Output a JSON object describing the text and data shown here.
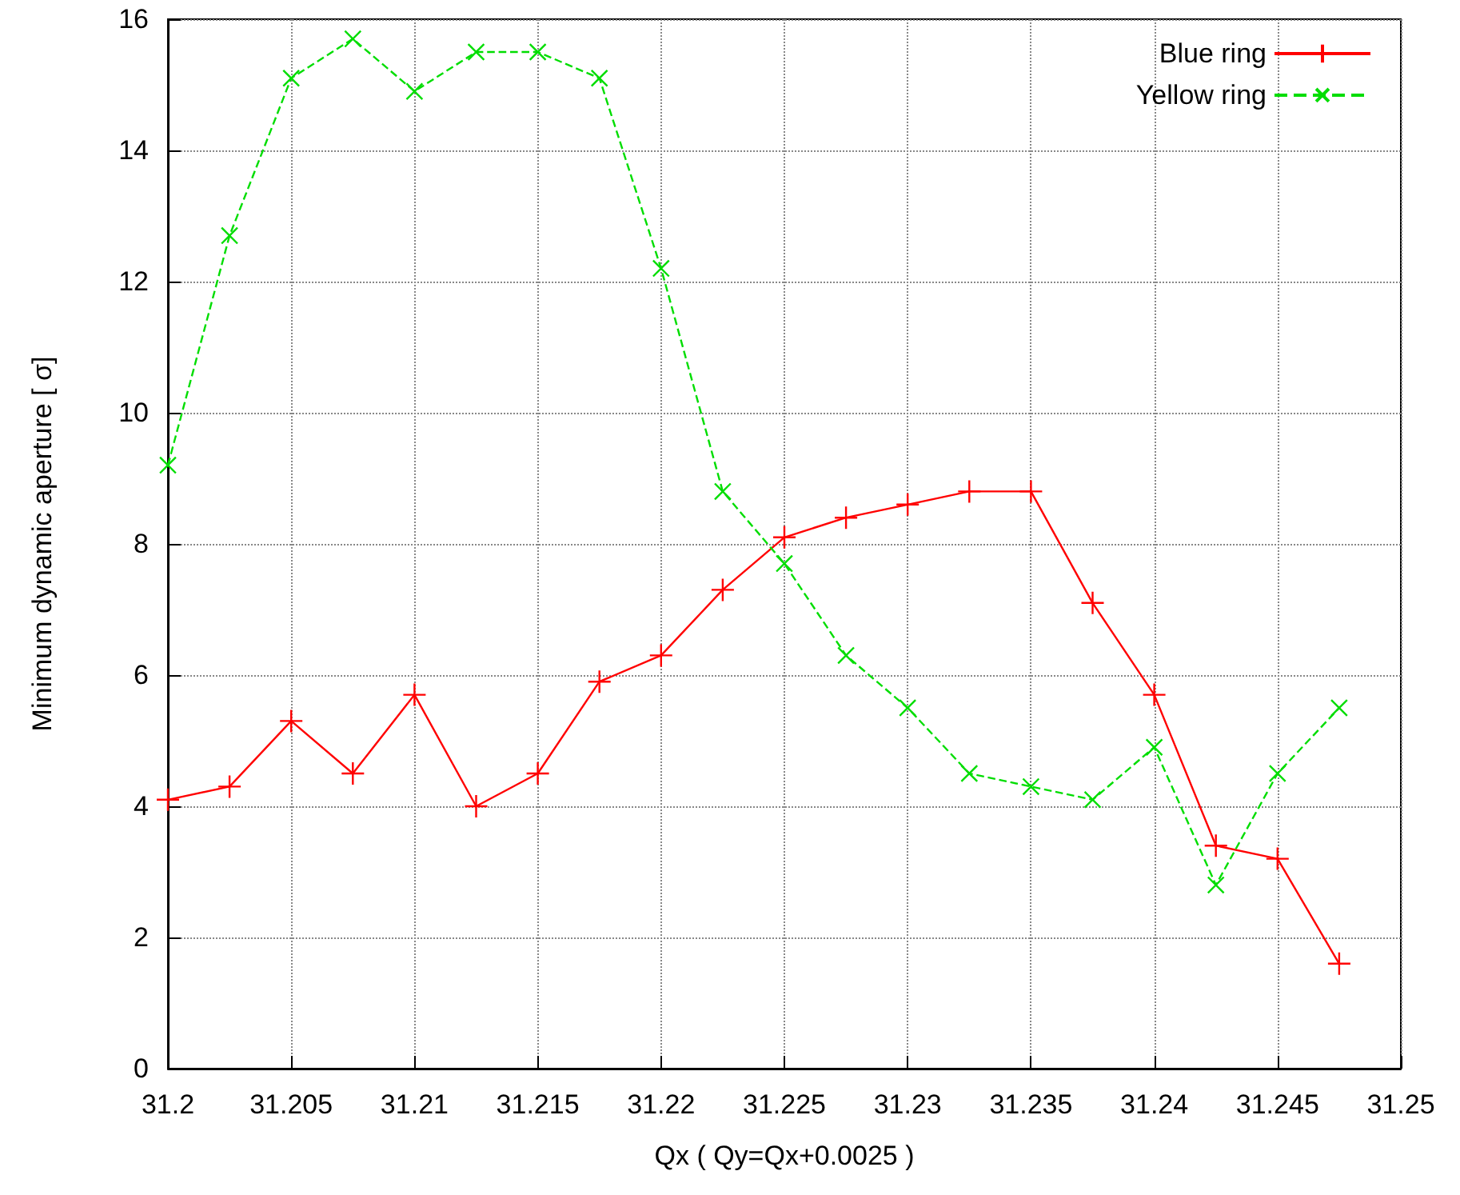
{
  "chart_data": {
    "type": "line",
    "xlabel": "Qx ( Qy=Qx+0.0025 )",
    "ylabel": "Minimum dynamic aperture [ σ]",
    "x": [
      31.2,
      31.2025,
      31.205,
      31.2075,
      31.21,
      31.2125,
      31.215,
      31.2175,
      31.22,
      31.2225,
      31.225,
      31.2275,
      31.23,
      31.2325,
      31.235,
      31.2375,
      31.24,
      31.2425,
      31.245,
      31.2475
    ],
    "series": [
      {
        "name": "Blue ring",
        "color": "#ff0000",
        "line_style": "solid",
        "values": [
          4.1,
          4.3,
          5.3,
          4.5,
          5.7,
          4.0,
          4.5,
          5.9,
          6.3,
          7.3,
          8.1,
          8.4,
          8.6,
          8.8,
          8.8,
          7.1,
          5.7,
          3.4,
          3.2,
          1.6
        ]
      },
      {
        "name": "Yellow ring",
        "color": "#00dd00",
        "line_style": "dashed",
        "values": [
          9.2,
          12.7,
          15.1,
          15.7,
          14.9,
          15.5,
          15.5,
          15.1,
          12.2,
          8.8,
          7.7,
          6.3,
          5.5,
          4.5,
          4.3,
          4.1,
          4.9,
          2.8,
          4.5,
          5.5
        ]
      }
    ],
    "xlim": [
      31.2,
      31.25
    ],
    "xticks": [
      31.2,
      31.205,
      31.21,
      31.215,
      31.22,
      31.225,
      31.23,
      31.235,
      31.24,
      31.245,
      31.25
    ],
    "ylim": [
      0,
      16
    ],
    "yticks": [
      0,
      2,
      4,
      6,
      8,
      10,
      12,
      14,
      16
    ],
    "grid": true,
    "legend": "top right",
    "marker": "cross"
  }
}
